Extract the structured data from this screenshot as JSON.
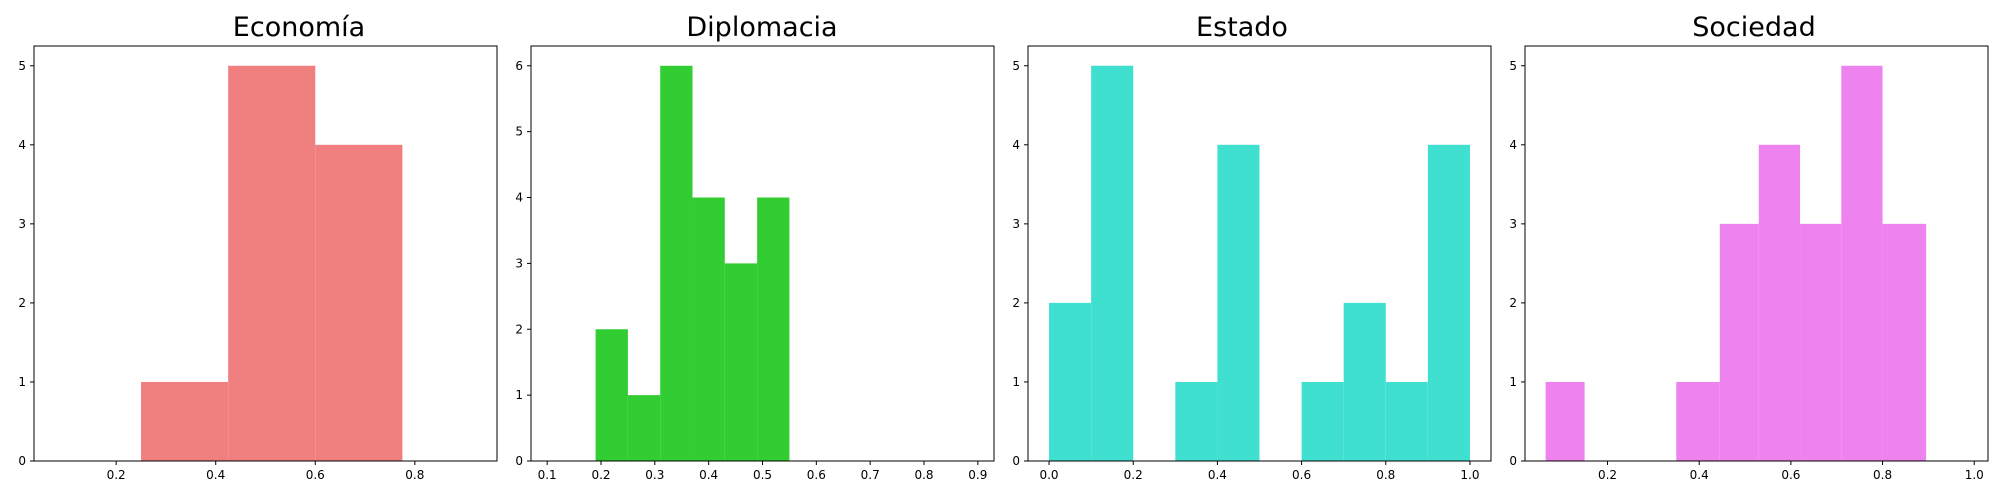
{
  "chart_data": [
    {
      "type": "bar",
      "title": "Economía",
      "color": "#f08080",
      "xlim": [
        0.035,
        0.965
      ],
      "ylim": [
        0,
        5.25
      ],
      "xticks": [
        "0.2",
        "0.4",
        "0.6",
        "0.8"
      ],
      "yticks": [
        "0",
        "1",
        "2",
        "3",
        "4",
        "5"
      ],
      "bins": [
        {
          "x0": 0.25,
          "x1": 0.425,
          "value": 1
        },
        {
          "x0": 0.425,
          "x1": 0.6,
          "value": 5
        },
        {
          "x0": 0.6,
          "x1": 0.775,
          "value": 4
        }
      ]
    },
    {
      "type": "bar",
      "title": "Diplomacia",
      "color": "#32cd32",
      "xlim": [
        0.07,
        0.93
      ],
      "ylim": [
        0,
        6.3
      ],
      "xticks": [
        "0.1",
        "0.2",
        "0.3",
        "0.4",
        "0.5",
        "0.6",
        "0.7",
        "0.8",
        "0.9"
      ],
      "yticks": [
        "0",
        "1",
        "2",
        "3",
        "4",
        "5",
        "6"
      ],
      "bins": [
        {
          "x0": 0.19,
          "x1": 0.25,
          "value": 2
        },
        {
          "x0": 0.25,
          "x1": 0.31,
          "value": 1
        },
        {
          "x0": 0.31,
          "x1": 0.37,
          "value": 6
        },
        {
          "x0": 0.37,
          "x1": 0.43,
          "value": 4
        },
        {
          "x0": 0.43,
          "x1": 0.49,
          "value": 3
        },
        {
          "x0": 0.49,
          "x1": 0.55,
          "value": 4
        }
      ]
    },
    {
      "type": "bar",
      "title": "Estado",
      "color": "#40e0d0",
      "xlim": [
        -0.05,
        1.05
      ],
      "ylim": [
        0,
        5.25
      ],
      "xticks": [
        "0.0",
        "0.2",
        "0.4",
        "0.6",
        "0.8",
        "1.0"
      ],
      "yticks": [
        "0",
        "1",
        "2",
        "3",
        "4",
        "5"
      ],
      "bins": [
        {
          "x0": 0.0,
          "x1": 0.1,
          "value": 2
        },
        {
          "x0": 0.1,
          "x1": 0.2,
          "value": 5
        },
        {
          "x0": 0.2,
          "x1": 0.3,
          "value": 0
        },
        {
          "x0": 0.3,
          "x1": 0.4,
          "value": 1
        },
        {
          "x0": 0.4,
          "x1": 0.5,
          "value": 4
        },
        {
          "x0": 0.5,
          "x1": 0.6,
          "value": 0
        },
        {
          "x0": 0.6,
          "x1": 0.7,
          "value": 1
        },
        {
          "x0": 0.7,
          "x1": 0.8,
          "value": 2
        },
        {
          "x0": 0.8,
          "x1": 0.9,
          "value": 1
        },
        {
          "x0": 0.9,
          "x1": 1.0,
          "value": 4
        }
      ]
    },
    {
      "type": "bar",
      "title": "Sociedad",
      "color": "#ee82ee",
      "xlim": [
        0.02,
        1.03
      ],
      "ylim": [
        0,
        5.25
      ],
      "xticks": [
        "0.2",
        "0.4",
        "0.6",
        "0.8",
        "1.0"
      ],
      "yticks": [
        "0",
        "1",
        "2",
        "3",
        "4",
        "5"
      ],
      "bins": [
        {
          "x0": 0.065,
          "x1": 0.15,
          "value": 1
        },
        {
          "x0": 0.15,
          "x1": 0.25,
          "value": 0
        },
        {
          "x0": 0.25,
          "x1": 0.35,
          "value": 0
        },
        {
          "x0": 0.35,
          "x1": 0.445,
          "value": 1
        },
        {
          "x0": 0.445,
          "x1": 0.53,
          "value": 3
        },
        {
          "x0": 0.53,
          "x1": 0.62,
          "value": 4
        },
        {
          "x0": 0.62,
          "x1": 0.71,
          "value": 3
        },
        {
          "x0": 0.71,
          "x1": 0.8,
          "value": 5
        },
        {
          "x0": 0.8,
          "x1": 0.895,
          "value": 3
        }
      ]
    }
  ]
}
